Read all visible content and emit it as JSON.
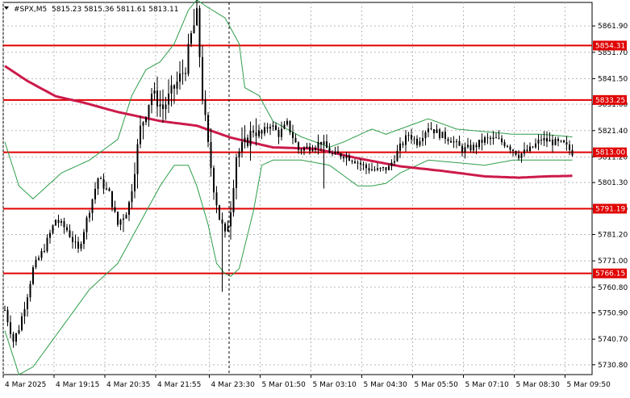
{
  "header": {
    "symbol": "#SPX,M5",
    "ohlc": "5815.23 5815.36 5811.61 5813.11"
  },
  "colors": {
    "candle": "#000000",
    "moving_average": "#cc1a4a",
    "bollinger": "#2e9e4a",
    "level": "#e00000",
    "grid": "#b8b8b8"
  },
  "icons": {
    "chart_menu": "triangle-down-icon"
  },
  "chart_data": {
    "type": "candlestick",
    "title": "#SPX,M5",
    "ylim": [
      5727,
      5871
    ],
    "y_tick_labels": [
      "5861.90",
      "5851.70",
      "5841.50",
      "5831.60",
      "5821.40",
      "5811.20",
      "5801.30",
      "5791.10",
      "5781.20",
      "5771.00",
      "5760.80",
      "5750.90",
      "5740.70",
      "5730.80"
    ],
    "x_tick_labels": [
      "4 Mar 2025",
      "4 Mar 19:15",
      "4 Mar 20:35",
      "4 Mar 21:55",
      "4 Mar 23:30",
      "5 Mar 01:50",
      "5 Mar 03:10",
      "5 Mar 04:30",
      "5 Mar 05:50",
      "5 Mar 07:10",
      "5 Mar 08:30",
      "5 Mar 09:50"
    ],
    "grid": true,
    "horizontal_levels": [
      {
        "value": 5854.31,
        "label": "5854.31"
      },
      {
        "value": 5833.25,
        "label": "5833.25"
      },
      {
        "value": 5813.0,
        "label": "5813.00"
      },
      {
        "value": 5791.19,
        "label": "5791.19"
      },
      {
        "value": 5766.15,
        "label": "5766.15"
      }
    ],
    "close_anchors": [
      [
        0,
        5752
      ],
      [
        3,
        5740
      ],
      [
        5,
        5745
      ],
      [
        8,
        5758
      ],
      [
        10,
        5768
      ],
      [
        14,
        5776
      ],
      [
        18,
        5787
      ],
      [
        22,
        5783
      ],
      [
        26,
        5775
      ],
      [
        30,
        5791
      ],
      [
        33,
        5803
      ],
      [
        37,
        5797
      ],
      [
        40,
        5785
      ],
      [
        44,
        5793
      ],
      [
        48,
        5822
      ],
      [
        52,
        5836
      ],
      [
        56,
        5830
      ],
      [
        60,
        5838
      ],
      [
        64,
        5846
      ],
      [
        66,
        5858
      ],
      [
        68,
        5866
      ],
      [
        70,
        5835
      ],
      [
        72,
        5815
      ],
      [
        74,
        5800
      ],
      [
        76,
        5788
      ],
      [
        78,
        5780
      ],
      [
        80,
        5792
      ],
      [
        82,
        5812
      ],
      [
        85,
        5816
      ],
      [
        88,
        5822
      ],
      [
        91,
        5820
      ],
      [
        94,
        5824
      ],
      [
        97,
        5820
      ],
      [
        100,
        5824
      ],
      [
        104,
        5814
      ],
      [
        108,
        5815
      ],
      [
        112,
        5817
      ],
      [
        116,
        5812
      ],
      [
        120,
        5812
      ],
      [
        124,
        5810
      ],
      [
        128,
        5807
      ],
      [
        132,
        5806
      ],
      [
        136,
        5807
      ],
      [
        140,
        5815
      ],
      [
        143,
        5820
      ],
      [
        146,
        5817
      ],
      [
        150,
        5823
      ],
      [
        154,
        5820
      ],
      [
        158,
        5818
      ],
      [
        162,
        5814
      ],
      [
        166,
        5815
      ],
      [
        170,
        5818
      ],
      [
        174,
        5818
      ],
      [
        178,
        5816
      ],
      [
        182,
        5812
      ],
      [
        186,
        5814
      ],
      [
        190,
        5818
      ],
      [
        194,
        5817
      ],
      [
        198,
        5816
      ],
      [
        201,
        5813
      ]
    ],
    "moving_average": {
      "name": "",
      "points": [
        [
          0,
          5846.4
        ],
        [
          8,
          5840.6
        ],
        [
          18,
          5834.7
        ],
        [
          28,
          5832.2
        ],
        [
          40,
          5828.6
        ],
        [
          55,
          5825.1
        ],
        [
          68,
          5823.3
        ],
        [
          80,
          5818.7
        ],
        [
          95,
          5814.9
        ],
        [
          110,
          5814.4
        ],
        [
          125,
          5810.7
        ],
        [
          140,
          5807.6
        ],
        [
          155,
          5805.8
        ],
        [
          170,
          5803.7
        ],
        [
          182,
          5803.2
        ],
        [
          192,
          5803.7
        ],
        [
          201,
          5803.9
        ]
      ]
    },
    "bollinger_upper": {
      "name": "",
      "points": [
        [
          0,
          5817
        ],
        [
          5,
          5800
        ],
        [
          10,
          5795
        ],
        [
          20,
          5805
        ],
        [
          30,
          5810
        ],
        [
          40,
          5818
        ],
        [
          45,
          5835
        ],
        [
          50,
          5845
        ],
        [
          55,
          5848
        ],
        [
          60,
          5855
        ],
        [
          65,
          5868
        ],
        [
          68,
          5872
        ],
        [
          72,
          5869
        ],
        [
          78,
          5865
        ],
        [
          83,
          5855
        ],
        [
          85,
          5838
        ],
        [
          90,
          5835
        ],
        [
          95,
          5825
        ],
        [
          105,
          5819
        ],
        [
          115,
          5815
        ],
        [
          120,
          5817
        ],
        [
          130,
          5822
        ],
        [
          135,
          5820
        ],
        [
          140,
          5822
        ],
        [
          150,
          5826
        ],
        [
          160,
          5822
        ],
        [
          170,
          5821
        ],
        [
          180,
          5820
        ],
        [
          190,
          5820
        ],
        [
          201,
          5819
        ]
      ]
    },
    "bollinger_lower": {
      "name": "",
      "points": [
        [
          0,
          5744
        ],
        [
          5,
          5727
        ],
        [
          10,
          5730
        ],
        [
          20,
          5745
        ],
        [
          30,
          5760
        ],
        [
          40,
          5770
        ],
        [
          45,
          5780
        ],
        [
          50,
          5790
        ],
        [
          55,
          5800
        ],
        [
          60,
          5808
        ],
        [
          65,
          5808
        ],
        [
          68,
          5800
        ],
        [
          72,
          5785
        ],
        [
          75,
          5770
        ],
        [
          78,
          5766
        ],
        [
          80,
          5765
        ],
        [
          83,
          5768
        ],
        [
          88,
          5790
        ],
        [
          91,
          5808
        ],
        [
          95,
          5810
        ],
        [
          105,
          5810
        ],
        [
          115,
          5808
        ],
        [
          125,
          5800
        ],
        [
          130,
          5800
        ],
        [
          135,
          5801
        ],
        [
          140,
          5805
        ],
        [
          150,
          5810
        ],
        [
          160,
          5809
        ],
        [
          170,
          5808
        ],
        [
          180,
          5810
        ],
        [
          190,
          5810
        ],
        [
          201,
          5810
        ]
      ]
    }
  }
}
